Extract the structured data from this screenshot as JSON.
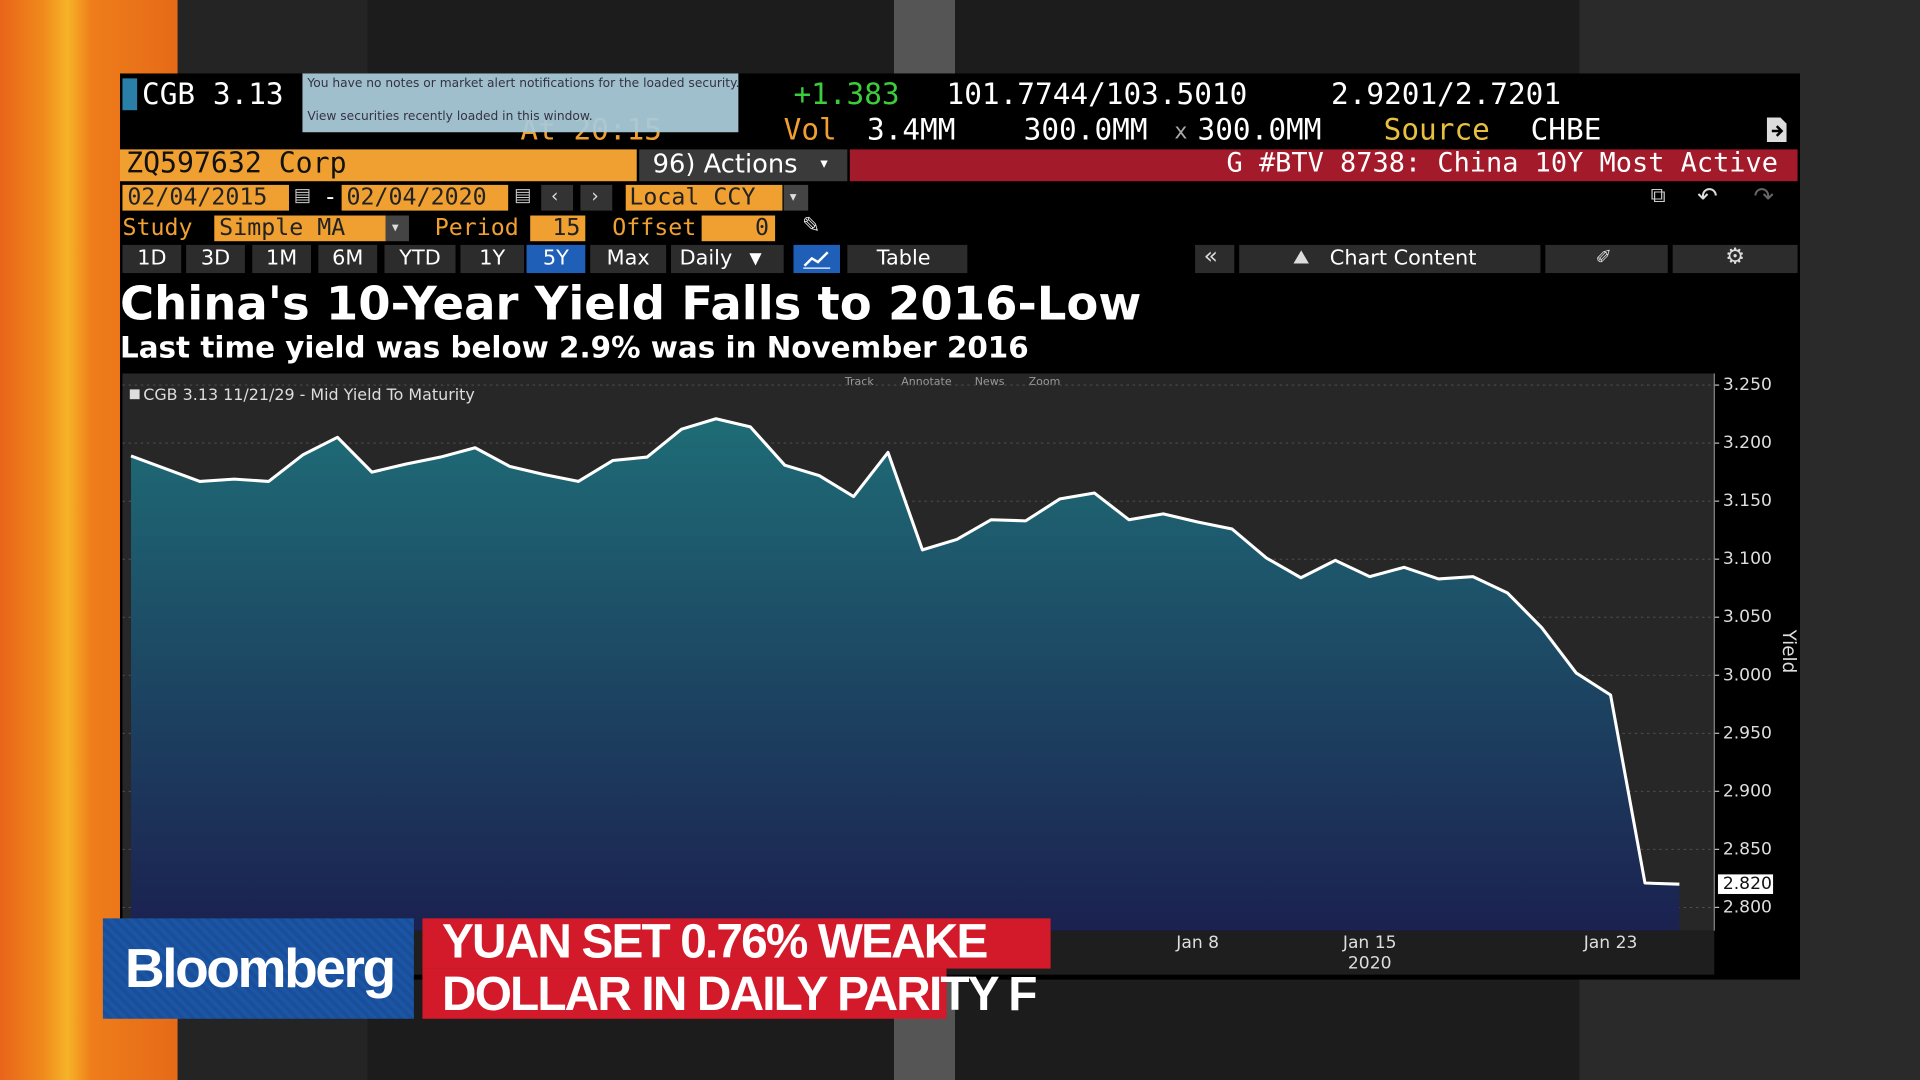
{
  "terminal": {
    "security": "CGB 3.13",
    "tooltip": [
      "You have no notes or market alert notifications for the loaded security.",
      "View securities recently loaded in this window."
    ],
    "time": "At 20:15",
    "change": "+1.383",
    "bid_ask_price": "101.7744/103.5010",
    "bid_ask_yield": "2.9201/2.7201",
    "vol_label": "Vol",
    "vol": "3.4MM",
    "size_bid": "300.0MM",
    "size_x": "x",
    "size_ask": "300.0MM",
    "source_label": "Source",
    "source": "CHBE",
    "ticker": "ZQ597632 Corp",
    "actions": "96) Actions",
    "page_title": "G #BTV 8738: China 10Y Most Active",
    "start_date": "02/04/2015",
    "date_sep": "-",
    "end_date": "02/04/2020",
    "currency": "Local CCY",
    "study_label": "Study",
    "study": "Simple MA",
    "period_label": "Period",
    "period": "15",
    "offset_label": "Offset",
    "offset": "0",
    "ranges": [
      "1D",
      "3D",
      "1M",
      "6M",
      "YTD",
      "1Y",
      "5Y",
      "Max"
    ],
    "frequency": "Daily",
    "table": "Table",
    "chart_content": "Chart Content",
    "chart_tools": [
      "Track",
      "Annotate",
      "News",
      "Zoom"
    ]
  },
  "chart_data": {
    "type": "area",
    "title": "China's 10-Year Yield Falls to 2016-Low",
    "subtitle": "Last time yield was below 2.9% was in November 2016",
    "y_label": "Yield",
    "categories": [
      null,
      null,
      null,
      null,
      null,
      null,
      null,
      null,
      null,
      null,
      null,
      null,
      null,
      null,
      null,
      null,
      null,
      null,
      null,
      null,
      null,
      null,
      null,
      null,
      null,
      null,
      null,
      null,
      null,
      null,
      null,
      "Jan 8",
      null,
      null,
      null,
      null,
      "Jan 15",
      null,
      null,
      null,
      null,
      null,
      null,
      "Jan 23",
      null,
      null
    ],
    "x_year": "2020",
    "series": [
      {
        "name": "CGB 3.13 11/21/29 - Mid Yield To Maturity",
        "color": "#1e6c76",
        "line_color": "#ffffff",
        "values": [
          3.189,
          3.178,
          3.167,
          3.169,
          3.167,
          3.19,
          3.205,
          3.175,
          3.182,
          3.188,
          3.196,
          3.18,
          3.173,
          3.167,
          3.185,
          3.188,
          3.212,
          3.221,
          3.214,
          3.181,
          3.172,
          3.154,
          3.192,
          3.108,
          3.117,
          3.134,
          3.133,
          3.152,
          3.157,
          3.134,
          3.139,
          3.132,
          3.126,
          3.101,
          3.084,
          3.099,
          3.085,
          3.093,
          3.083,
          3.085,
          3.071,
          3.041,
          3.002,
          2.983,
          2.821,
          2.82
        ],
        "value_labels": [
          null,
          null,
          null,
          null,
          null,
          null,
          null,
          null,
          null,
          null,
          null,
          null,
          null,
          null,
          null,
          null,
          null,
          null,
          null,
          null,
          null,
          null,
          null,
          null,
          null,
          null,
          null,
          null,
          null,
          null,
          null,
          null,
          null,
          null,
          null,
          null,
          null,
          null,
          null,
          null,
          null,
          null,
          null,
          null,
          null,
          "2.820"
        ]
      }
    ],
    "ylim": [
      2.78,
      3.26
    ],
    "yticks": [
      {
        "value": 2.8,
        "label": "2.800"
      },
      {
        "value": 2.85,
        "label": "2.850"
      },
      {
        "value": 2.9,
        "label": "2.900"
      },
      {
        "value": 2.95,
        "label": "2.950"
      },
      {
        "value": 3.0,
        "label": "3.000"
      },
      {
        "value": 3.05,
        "label": "3.050"
      },
      {
        "value": 3.1,
        "label": "3.100"
      },
      {
        "value": 3.15,
        "label": "3.150"
      },
      {
        "value": 3.2,
        "label": "3.200"
      },
      {
        "value": 3.25,
        "label": "3.250"
      }
    ],
    "grid": true,
    "y_axis_side": "right"
  },
  "broadcast": {
    "brand": "Bloomberg",
    "headline": [
      "YUAN SET 0.76% WEAKE",
      "DOLLAR IN DAILY PARITY F"
    ]
  }
}
